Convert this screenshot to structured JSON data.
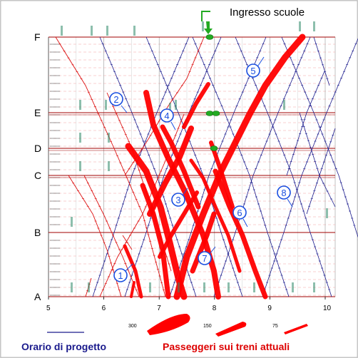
{
  "diagram": {
    "stations": [
      "A",
      "B",
      "C",
      "D",
      "E",
      "F"
    ],
    "hours": [
      "5",
      "6",
      "7",
      "8",
      "9",
      "10"
    ],
    "callout_label": "Ingresso scuole",
    "circled_labels": [
      "1",
      "2",
      "3",
      "4",
      "5",
      "6",
      "7",
      "8"
    ],
    "legend": {
      "planned_label": "Orario di progetto",
      "passengers_label": "Passeggeri sui treni attuali",
      "scale_values": [
        "300",
        "150",
        "75"
      ]
    },
    "colors": {
      "planned": "#1a1a8c",
      "actual": "#dd1111",
      "passengers": "#ff0000",
      "station_line": "#a00000",
      "callout": "#22aa22",
      "circle": "#1a4fe0",
      "planned_legend_text": "#1a1a8c",
      "passengers_legend_text": "#dd0000"
    }
  }
}
